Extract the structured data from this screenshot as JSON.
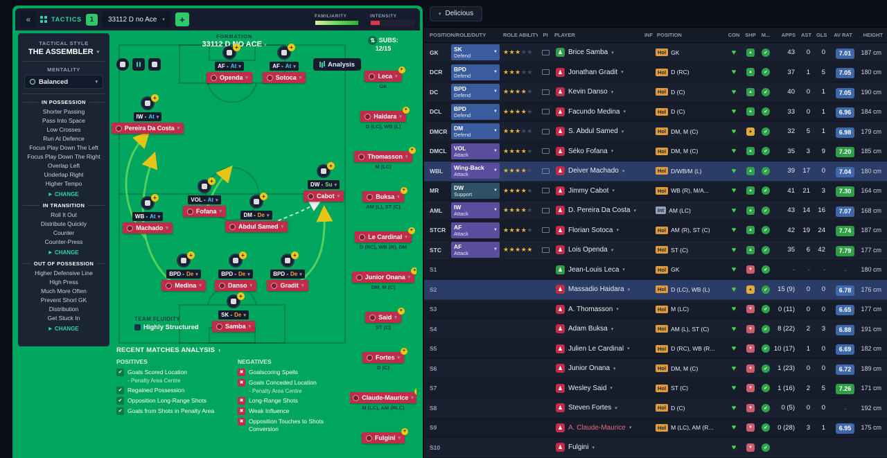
{
  "tactics": {
    "topbar": {
      "back": "«",
      "label": "TACTICS",
      "slot": "1",
      "preset": "33112 D no Ace",
      "add": "+",
      "familiarity": "FAMILIARITY",
      "intensity": "INTENSITY"
    },
    "style": {
      "label": "TACTICAL STYLE",
      "value": "THE ASSEMBLER"
    },
    "mentality": {
      "label": "MENTALITY",
      "value": "Balanced"
    },
    "sections": [
      {
        "title": "IN POSSESSION",
        "items": [
          "Shorter Passing",
          "Pass Into Space",
          "Low Crosses",
          "Run At Defence",
          "Focus Play Down The Left",
          "Focus Play Down The Right",
          "Overlap Left",
          "Underlap Right",
          "Higher Tempo"
        ],
        "change": "CHANGE"
      },
      {
        "title": "IN TRANSITION",
        "items": [
          "Roll It Out",
          "Distribute Quickly",
          "Counter",
          "Counter-Press"
        ],
        "change": "CHANGE"
      },
      {
        "title": "OUT OF POSSESSION",
        "items": [
          "Higher Defensive Line",
          "High Press",
          "Much More Often",
          "Prevent Short GK",
          "Distribution",
          "Get Stuck In"
        ],
        "change": "CHANGE"
      }
    ],
    "formation": {
      "label": "FORMATION",
      "name": "33112 D NO ACE"
    },
    "analysis_button": "Analysis",
    "pitch": [
      {
        "role": "AF",
        "duty": "At",
        "name": "Openda"
      },
      {
        "role": "AF",
        "duty": "At",
        "name": "Sotoca"
      },
      {
        "role": "IW",
        "duty": "At",
        "name": "Pereira Da Costa"
      },
      {
        "role": "VOL",
        "duty": "At",
        "name": "Fofana"
      },
      {
        "role": "DW",
        "duty": "Su",
        "name": "Cabot"
      },
      {
        "role": "WB",
        "duty": "At",
        "name": "Machado"
      },
      {
        "role": "DM",
        "duty": "De",
        "name": "Abdul Samed"
      },
      {
        "role": "BPD",
        "duty": "De",
        "name": "Medina"
      },
      {
        "role": "BPD",
        "duty": "De",
        "name": "Danso"
      },
      {
        "role": "BPD",
        "duty": "De",
        "name": "Gradit"
      },
      {
        "role": "SK",
        "duty": "De",
        "name": "Samba"
      }
    ],
    "fluidity": {
      "label": "TEAM FLUIDITY",
      "value": "Highly Structured"
    },
    "subs": {
      "title": "SUBS:",
      "count": "12/15",
      "list": [
        {
          "name": "Leca",
          "pos": "GK"
        },
        {
          "name": "Haidara",
          "pos": "D (LC), WB (L)"
        },
        {
          "name": "Thomasson",
          "pos": "M (LC)"
        },
        {
          "name": "Buksa",
          "pos": "AM (L), ST (C)"
        },
        {
          "name": "Le Cardinal",
          "pos": "D (RC), WB (R), DM"
        },
        {
          "name": "Junior Onana",
          "pos": "DM, M (C)"
        },
        {
          "name": "Said",
          "pos": "ST (C)"
        },
        {
          "name": "Fortes",
          "pos": "D (C)"
        },
        {
          "name": "Claude-Maurice",
          "pos": "M (LC), AM (RLC)"
        },
        {
          "name": "Fulgini",
          "pos": ""
        }
      ]
    },
    "recent": {
      "title": "RECENT MATCHES ANALYSIS",
      "positives_label": "POSITIVES",
      "negatives_label": "NEGATIVES",
      "positives": [
        {
          "text": "Goals Scored Location",
          "sub": "- Penalty Area Centre"
        },
        {
          "text": "Regained Possession"
        },
        {
          "text": "Opposition Long-Range Shots"
        },
        {
          "text": "Goals from Shots in Penalty Area"
        }
      ],
      "negatives": [
        {
          "text": "Goalscoring Spells"
        },
        {
          "text": "Goals Conceded Location",
          "sub": "- Penalty Area Centre"
        },
        {
          "text": "Long-Range Shots"
        },
        {
          "text": "Weak Influence"
        },
        {
          "text": "Opposition Touches to Shots Conversion"
        }
      ]
    }
  },
  "squad": {
    "filter": "Delicious",
    "headers": {
      "posrole": "POSITION/ROLE/DUTY",
      "ability": "ROLE ABILITY",
      "pi": "PI",
      "player": "PLAYER",
      "inf": "INF",
      "position": "POSITION",
      "con": "CON",
      "shp": "SHP",
      "mor": "M...",
      "apps": "APPS",
      "ast": "AST",
      "gls": "GLS",
      "avrat": "AV RAT",
      "height": "HEIGHT"
    },
    "rows": [
      {
        "pos": "GK",
        "role": "SK",
        "duty": "Defend",
        "dutyType": "defend",
        "stars": 3,
        "player": "Brice Samba",
        "iconTone": "green",
        "badge": "Hol",
        "position": "GK",
        "shp": "green",
        "apps": "43",
        "ast": "0",
        "gls": "0",
        "rating": "7.01",
        "ratingTone": "blue",
        "height": "187 cm"
      },
      {
        "pos": "DCR",
        "role": "BPD",
        "duty": "Defend",
        "dutyType": "defend",
        "stars": 3,
        "player": "Jonathan Gradit",
        "iconTone": "red",
        "badge": "Hol",
        "position": "D (RC)",
        "shp": "green",
        "apps": "37",
        "ast": "1",
        "gls": "5",
        "rating": "7.05",
        "ratingTone": "blue",
        "height": "180 cm"
      },
      {
        "pos": "DC",
        "role": "BPD",
        "duty": "Defend",
        "dutyType": "defend",
        "stars": 4,
        "player": "Kevin Danso",
        "iconTone": "red",
        "badge": "Hol",
        "position": "D (C)",
        "shp": "green",
        "apps": "40",
        "ast": "0",
        "gls": "1",
        "rating": "7.05",
        "ratingTone": "blue",
        "height": "190 cm"
      },
      {
        "pos": "DCL",
        "role": "BPD",
        "duty": "Defend",
        "dutyType": "defend",
        "stars": 4,
        "player": "Facundo Medina",
        "iconTone": "red",
        "badge": "Hol",
        "position": "D (C)",
        "shp": "green",
        "apps": "33",
        "ast": "0",
        "gls": "1",
        "rating": "6.96",
        "ratingTone": "blue",
        "height": "184 cm"
      },
      {
        "pos": "DMCR",
        "role": "DM",
        "duty": "Defend",
        "dutyType": "defend",
        "stars": 3,
        "player": "S. Abdul Samed",
        "iconTone": "red",
        "badge": "Hol",
        "position": "DM, M (C)",
        "shp": "yellow",
        "apps": "32",
        "ast": "5",
        "gls": "1",
        "rating": "6.98",
        "ratingTone": "blue",
        "height": "179 cm"
      },
      {
        "pos": "DMCL",
        "role": "VOL",
        "duty": "Attack",
        "dutyType": "attack",
        "stars": 4,
        "player": "Séko Fofana",
        "iconTone": "red",
        "badge": "Hol",
        "position": "DM, M (C)",
        "shp": "green",
        "apps": "35",
        "ast": "3",
        "gls": "9",
        "rating": "7.20",
        "ratingTone": "green",
        "height": "185 cm"
      },
      {
        "pos": "WBL",
        "role": "Wing-Back",
        "duty": "Attack",
        "dutyType": "attack",
        "stars": 4,
        "player": "Deiver Machado",
        "iconTone": "red",
        "badge": "Hol",
        "position": "D/WB/M (L)",
        "shp": "green",
        "apps": "39",
        "ast": "17",
        "gls": "0",
        "rating": "7.04",
        "ratingTone": "blue",
        "height": "180 cm",
        "selected": true
      },
      {
        "pos": "MR",
        "role": "DW",
        "duty": "Support",
        "dutyType": "support",
        "stars": 4,
        "player": "Jimmy Cabot",
        "iconTone": "red",
        "badge": "Hol",
        "position": "WB (R), M/A...",
        "shp": "green",
        "apps": "41",
        "ast": "21",
        "gls": "3",
        "rating": "7.30",
        "ratingTone": "green",
        "height": "164 cm"
      },
      {
        "pos": "AML",
        "role": "IW",
        "duty": "Attack",
        "dutyType": "attack",
        "stars": 4,
        "player": "D. Pereira Da Costa",
        "iconTone": "red",
        "badge": "Int",
        "position": "AM (LC)",
        "shp": "green",
        "apps": "43",
        "ast": "14",
        "g ls": "16",
        "gls": "16",
        "rating": "7.07",
        "ratingTone": "blue",
        "height": "168 cm"
      },
      {
        "pos": "STCR",
        "role": "AF",
        "duty": "Attack",
        "dutyType": "attack",
        "stars": 4,
        "player": "Florian Sotoca",
        "iconTone": "red",
        "badge": "Hol",
        "position": "AM (R), ST (C)",
        "shp": "green",
        "apps": "42",
        "ast": "19",
        "gls": "24",
        "rating": "7.74",
        "ratingTone": "green",
        "height": "187 cm"
      },
      {
        "pos": "STC",
        "role": "AF",
        "duty": "Attack",
        "dutyType": "attack",
        "stars": 5,
        "player": "Lois Openda",
        "iconTone": "red",
        "badge": "Hol",
        "position": "ST (C)",
        "shp": "green",
        "apps": "35",
        "ast": "6",
        "gls": "42",
        "rating": "7.79",
        "ratingTone": "green",
        "height": "177 cm"
      },
      {
        "pos": "S1",
        "player": "Jean-Louis Leca",
        "iconTone": "green",
        "badge": "Hol",
        "position": "GK",
        "shp": "red",
        "apps": "-",
        "ast": "-",
        "gls": "-",
        "rating": "-",
        "ratingTone": "dash",
        "height": "180 cm"
      },
      {
        "pos": "S2",
        "player": "Massadio Haidara",
        "iconTone": "red",
        "badge": "Hol",
        "position": "D (LC), WB (L)",
        "shp": "yellow",
        "apps": "15 (9)",
        "ast": "0",
        "gls": "0",
        "rating": "6.78",
        "ratingTone": "blue",
        "height": "176 cm",
        "selected": true
      },
      {
        "pos": "S3",
        "player": "A. Thomasson",
        "iconTone": "red",
        "badge": "Hol",
        "position": "M (LC)",
        "shp": "red",
        "apps": "0 (11)",
        "ast": "0",
        "gls": "0",
        "rating": "6.65",
        "ratingTone": "blue",
        "height": "177 cm"
      },
      {
        "pos": "S4",
        "player": "Adam Buksa",
        "iconTone": "red",
        "badge": "Hol",
        "position": "AM (L), ST (C)",
        "shp": "red",
        "apps": "8 (22)",
        "ast": "2",
        "gls": "3",
        "rating": "6.88",
        "ratingTone": "blue",
        "height": "191 cm"
      },
      {
        "pos": "S5",
        "player": "Julien Le Cardinal",
        "iconTone": "red",
        "badge": "Hol",
        "position": "D (RC), WB (R...",
        "shp": "red",
        "apps": "10 (17)",
        "ast": "1",
        "gls": "0",
        "rating": "6.69",
        "ratingTone": "blue",
        "height": "182 cm"
      },
      {
        "pos": "S6",
        "player": "Junior Onana",
        "iconTone": "red",
        "badge": "Hol",
        "position": "DM, M (C)",
        "shp": "red",
        "apps": "1 (23)",
        "ast": "0",
        "gls": "0",
        "rating": "6.72",
        "ratingTone": "blue",
        "height": "189 cm"
      },
      {
        "pos": "S7",
        "player": "Wesley Said",
        "iconTone": "red",
        "badge": "Hol",
        "position": "ST (C)",
        "shp": "red",
        "apps": "1 (16)",
        "ast": "2",
        "gls": "5",
        "rating": "7.26",
        "ratingTone": "green",
        "height": "171 cm"
      },
      {
        "pos": "S8",
        "player": "Steven Fortes",
        "iconTone": "red",
        "badge": "Hol",
        "position": "D (C)",
        "shp": "red",
        "apps": "0 (5)",
        "ast": "0",
        "gls": "0",
        "rating": "-",
        "ratingTone": "dash",
        "height": "192 cm"
      },
      {
        "pos": "S9",
        "player": "A. Claude-Maurice",
        "iconTone": "red",
        "nameTone": "pink",
        "badge": "Hol",
        "position": "M (LC), AM (R...",
        "shp": "red",
        "apps": "0 (28)",
        "ast": "3",
        "gls": "1",
        "rating": "6.95",
        "ratingTone": "blue",
        "height": "175 cm"
      },
      {
        "pos": "S10",
        "player": "Fulgini",
        "iconTone": "red",
        "badge": "",
        "position": "",
        "shp": "red",
        "apps": "",
        "ast": "",
        "gls": "",
        "rating": "",
        "ratingTone": "dash",
        "height": ""
      }
    ]
  }
}
